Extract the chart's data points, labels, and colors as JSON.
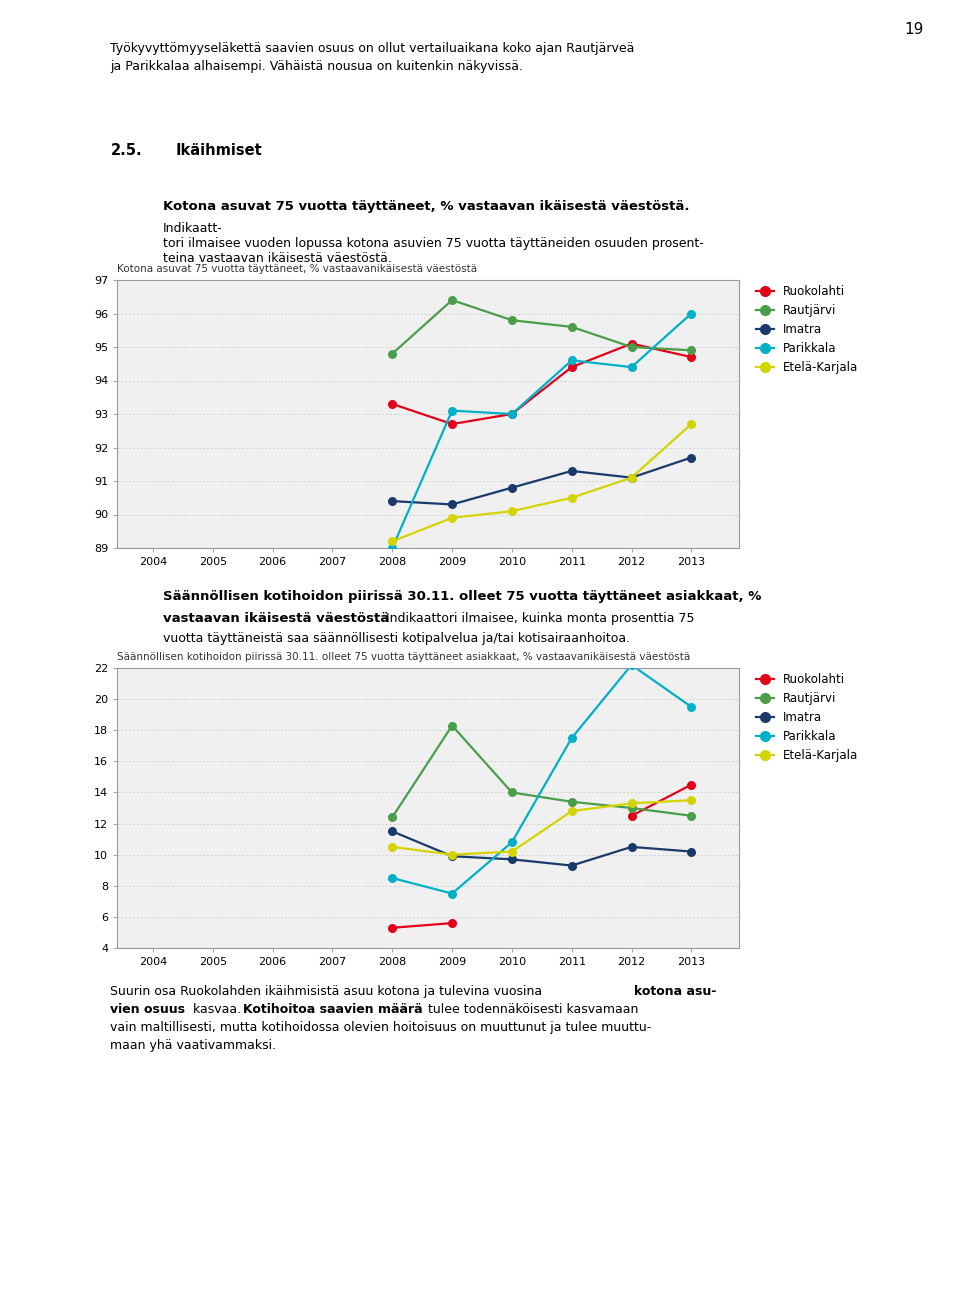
{
  "page_number": "19",
  "header_line1": "Työkyvyttömyyseläkettä saavien osuus on ollut vertailuaikana koko ajan Rautjärveä",
  "header_line2": "ja Parikkalaa alhaisempi. Vähäistä nousua on kuitenkin näkyvissä.",
  "section_num": "2.5.",
  "section_title": "Ikäihmiset",
  "chart1_inner_title": "Kotona asuvat 75 vuotta täyttäneet, % vastaavanikäisestä väestöstä",
  "chart1_ylim": [
    89,
    97
  ],
  "chart1_yticks": [
    89,
    90,
    91,
    92,
    93,
    94,
    95,
    96,
    97
  ],
  "chart2_inner_title": "Säännöllisen kotihoidon piirissä 30.11. olleet 75 vuotta täyttäneet asiakkaat, % vastaavanikäisestä väestöstä",
  "chart2_ylim": [
    4,
    22
  ],
  "chart2_yticks": [
    4,
    6,
    8,
    10,
    12,
    14,
    16,
    18,
    20,
    22
  ],
  "years": [
    2004,
    2005,
    2006,
    2007,
    2008,
    2009,
    2010,
    2011,
    2012,
    2013
  ],
  "legend_labels": [
    "Ruokolahti",
    "Rautjärvi",
    "Imatra",
    "Parikkala",
    "Etelä-Karjala"
  ],
  "colors": {
    "Ruokolahti": "#e2001a",
    "Rautjärvi": "#4a9e4a",
    "Imatra": "#1a3a6b",
    "Parikkala": "#00b0c8",
    "Etelä-Karjala": "#d4d400"
  },
  "chart1_data": {
    "Ruokolahti": [
      null,
      null,
      null,
      null,
      93.3,
      92.7,
      93.0,
      94.4,
      95.1,
      94.7
    ],
    "Rautjärvi": [
      null,
      null,
      null,
      null,
      94.8,
      96.4,
      95.8,
      95.6,
      95.0,
      94.9
    ],
    "Imatra": [
      null,
      null,
      null,
      null,
      90.4,
      90.3,
      90.8,
      91.3,
      91.1,
      91.7
    ],
    "Parikkala": [
      null,
      null,
      null,
      null,
      89.0,
      93.1,
      93.0,
      94.6,
      94.4,
      96.0
    ],
    "Etelä-Karjala": [
      null,
      null,
      null,
      null,
      89.2,
      89.9,
      90.1,
      90.5,
      91.1,
      92.7
    ]
  },
  "chart2_data": {
    "Ruokolahti": [
      null,
      null,
      null,
      null,
      5.3,
      5.6,
      null,
      null,
      12.5,
      14.5
    ],
    "Rautjärvi": [
      null,
      null,
      null,
      null,
      12.4,
      18.3,
      14.0,
      13.4,
      13.0,
      12.5
    ],
    "Imatra": [
      null,
      null,
      null,
      null,
      11.5,
      9.9,
      9.7,
      9.3,
      10.5,
      10.2
    ],
    "Parikkala": [
      null,
      null,
      null,
      null,
      8.5,
      7.5,
      10.8,
      17.5,
      22.2,
      19.5
    ],
    "Etelä-Karjala": [
      null,
      null,
      null,
      null,
      10.5,
      10.0,
      10.2,
      12.8,
      13.3,
      13.5
    ]
  },
  "chart_bg": "#f0f0f0",
  "grid_color": "#d0d0d0",
  "border_color": "#999999"
}
